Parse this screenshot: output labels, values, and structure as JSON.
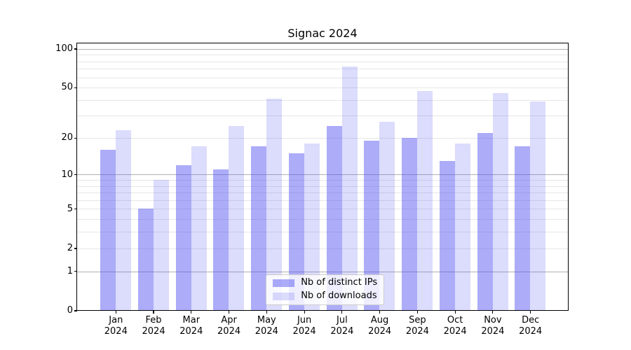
{
  "title": "Signac 2024",
  "legend": {
    "items": [
      {
        "label": "Nb of distinct IPs"
      },
      {
        "label": "Nb of downloads"
      }
    ]
  },
  "y_axis": {
    "tick_values": [
      100,
      50,
      20,
      10,
      5,
      2,
      1,
      0
    ],
    "tick_labels": [
      "100",
      "50",
      "20",
      "10",
      "5",
      "2",
      "1",
      "0"
    ]
  },
  "x_axis": {
    "tick_labels": [
      "Jan 2024",
      "Feb 2024",
      "Mar 2024",
      "Apr 2024",
      "May 2024",
      "Jun 2024",
      "Jul 2024",
      "Aug 2024",
      "Sep 2024",
      "Oct 2024",
      "Nov 2024",
      "Dec 2024"
    ]
  },
  "chart_data": {
    "type": "bar",
    "title": "Signac 2024",
    "categories": [
      "Jan 2024",
      "Feb 2024",
      "Mar 2024",
      "Apr 2024",
      "May 2024",
      "Jun 2024",
      "Jul 2024",
      "Aug 2024",
      "Sep 2024",
      "Oct 2024",
      "Nov 2024",
      "Dec 2024"
    ],
    "series": [
      {
        "name": "Nb of distinct IPs",
        "color": "#aeaef7",
        "values": [
          16,
          5,
          12,
          11,
          17,
          15,
          25,
          19,
          20,
          13,
          22,
          17
        ]
      },
      {
        "name": "Nb of downloads",
        "color": "#dcdcf8",
        "values": [
          23,
          9,
          17,
          25,
          41,
          18,
          73,
          27,
          47,
          18,
          45,
          39
        ]
      }
    ],
    "xlabel": "",
    "ylabel": "",
    "yscale": "log10(value+1)",
    "ylim": [
      0,
      110
    ],
    "y_ticks": [
      0,
      1,
      2,
      5,
      10,
      20,
      50,
      100
    ],
    "grid": {
      "on": true,
      "major_at": [
        1,
        10,
        100
      ],
      "minor_at": [
        2,
        3,
        4,
        5,
        6,
        7,
        8,
        9,
        20,
        30,
        40,
        50,
        60,
        70,
        80,
        90
      ],
      "major_color": "#b0b0b0",
      "minor_color": "#e7e7e7"
    },
    "legend_position": "lower center"
  }
}
